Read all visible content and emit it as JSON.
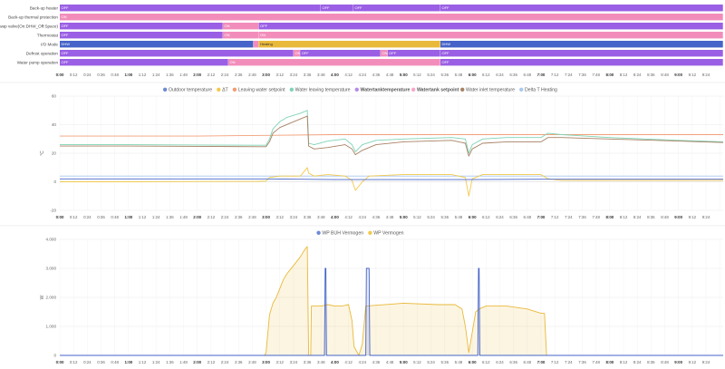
{
  "colors": {
    "off": "#9a5fe4",
    "on": "#f28dbb",
    "heating": "#e9b93a",
    "dhw": "#4563c8"
  },
  "timeline": {
    "rows": [
      {
        "label": "Back-up heater",
        "segments": [
          {
            "start": 0,
            "end": 48,
            "state": "off",
            "text": "OFF"
          },
          {
            "start": 48,
            "end": 54,
            "state": "off",
            "text": "OFF"
          },
          {
            "start": 54,
            "end": 70,
            "state": "off",
            "text": "OFF"
          },
          {
            "start": 70,
            "end": 122,
            "state": "off",
            "text": "OFF"
          }
        ]
      },
      {
        "label": "Back-up thermal protection",
        "segments": [
          {
            "start": 0,
            "end": 122,
            "state": "on",
            "text": "ON"
          }
        ]
      },
      {
        "label": "Swap valve(On:DHW_Off:Space)",
        "segments": [
          {
            "start": 0,
            "end": 30,
            "state": "off",
            "text": "OFF"
          },
          {
            "start": 30,
            "end": 36.6,
            "state": "on",
            "text": "ON"
          },
          {
            "start": 36.6,
            "end": 122,
            "state": "off",
            "text": "OFF"
          }
        ]
      },
      {
        "label": "Thermostat",
        "segments": [
          {
            "start": 0,
            "end": 30,
            "state": "off",
            "text": "OFF"
          },
          {
            "start": 30,
            "end": 36.6,
            "state": "on",
            "text": "ON"
          },
          {
            "start": 36.6,
            "end": 122,
            "state": "on",
            "text": "ON"
          }
        ]
      },
      {
        "label": "I/O Mode",
        "segments": [
          {
            "start": 0,
            "end": 35.6,
            "state": "dhw",
            "text": "DHW"
          },
          {
            "start": 35.6,
            "end": 36.6,
            "state": "on",
            "text": ""
          },
          {
            "start": 36.6,
            "end": 70,
            "state": "heating",
            "text": "Heating"
          },
          {
            "start": 70,
            "end": 122,
            "state": "dhw",
            "text": "DHW"
          }
        ]
      },
      {
        "label": "Defrost operation",
        "segments": [
          {
            "start": 0,
            "end": 43,
            "state": "off",
            "text": "OFF"
          },
          {
            "start": 43,
            "end": 44.2,
            "state": "on",
            "text": "ON"
          },
          {
            "start": 44.2,
            "end": 59,
            "state": "off",
            "text": "OFF"
          },
          {
            "start": 59,
            "end": 60.3,
            "state": "on",
            "text": "ON"
          },
          {
            "start": 60.3,
            "end": 70,
            "state": "off",
            "text": "OFF"
          },
          {
            "start": 70,
            "end": 122,
            "state": "off",
            "text": "OFF"
          }
        ]
      },
      {
        "label": "Water pump operation",
        "segments": [
          {
            "start": 0,
            "end": 31,
            "state": "off",
            "text": "OFF"
          },
          {
            "start": 31,
            "end": 70,
            "state": "on",
            "text": "ON"
          },
          {
            "start": 70,
            "end": 122,
            "state": "off",
            "text": "OFF"
          }
        ]
      }
    ],
    "time_labels": [
      "0:00",
      "0:12",
      "0:24",
      "0:36",
      "0:48",
      "1:00",
      "1:12",
      "1:24",
      "1:36",
      "1:48",
      "2:00",
      "2:12",
      "2:24",
      "2:36",
      "2:48",
      "3:00",
      "3:12",
      "3:24",
      "3:36",
      "3:48",
      "4:00",
      "4:12",
      "4:24",
      "4:36",
      "4:48",
      "5:00",
      "5:12",
      "5:24",
      "5:36",
      "5:48",
      "6:00",
      "6:12",
      "6:24",
      "6:36",
      "6:48",
      "7:00",
      "7:12",
      "7:24",
      "7:36",
      "7:48",
      "8:00",
      "8:12",
      "8:24",
      "8:36",
      "8:48",
      "9:00",
      "9:12",
      "9:24"
    ]
  },
  "chart_data": [
    {
      "type": "line",
      "x_unit": "hours",
      "xlim": [
        0,
        9.65
      ],
      "ylabel": "°C",
      "ylim": [
        -20,
        60
      ],
      "yticks": [
        "60",
        "40",
        "20",
        "0",
        "-20"
      ],
      "legend": [
        {
          "name": "Outdoor temperature",
          "color": "#6f89d6",
          "style": "normal"
        },
        {
          "name": "ΔT",
          "color": "#f2c94c",
          "style": "normal"
        },
        {
          "name": "Leaving water setpoint",
          "color": "#f29b72",
          "style": "normal"
        },
        {
          "name": "Water leaving temperature",
          "color": "#7fd3b5",
          "style": "normal"
        },
        {
          "name": "Watertanktemperature",
          "color": "#b68ae8",
          "style": "bold"
        },
        {
          "name": "Watertank setpoint",
          "color": "#f6a6c9",
          "style": "bold"
        },
        {
          "name": "Water inlet temperature",
          "color": "#a88163",
          "style": "normal"
        },
        {
          "name": "Delta T Heating",
          "color": "#a9c8f0",
          "style": "normal"
        }
      ],
      "series": [
        {
          "name": "Leaving water setpoint",
          "color": "#f2a07a",
          "points": [
            [
              0,
              32
            ],
            [
              1,
              32
            ],
            [
              2,
              32
            ],
            [
              3,
              32.5
            ],
            [
              4,
              33
            ],
            [
              5,
              33
            ],
            [
              6,
              33
            ],
            [
              7,
              33
            ],
            [
              8,
              33
            ],
            [
              9,
              33
            ],
            [
              9.65,
              33
            ]
          ]
        },
        {
          "name": "Delta T Heating",
          "color": "#a9c8f0",
          "points": [
            [
              0,
              4
            ],
            [
              3,
              4
            ],
            [
              3.05,
              4
            ],
            [
              4,
              4
            ],
            [
              6,
              4
            ],
            [
              7,
              4
            ],
            [
              9.65,
              4
            ]
          ]
        },
        {
          "name": "Water leaving temperature",
          "color": "#7fd3b5",
          "points": [
            [
              0,
              26
            ],
            [
              1,
              26
            ],
            [
              2,
              25.8
            ],
            [
              2.9,
              25.6
            ],
            [
              3.0,
              25.6
            ],
            [
              3.05,
              30
            ],
            [
              3.1,
              37
            ],
            [
              3.2,
              42
            ],
            [
              3.3,
              45
            ],
            [
              3.5,
              48
            ],
            [
              3.6,
              50
            ],
            [
              3.62,
              27
            ],
            [
              3.7,
              26
            ],
            [
              3.9,
              28.5
            ],
            [
              4.15,
              30
            ],
            [
              4.25,
              26
            ],
            [
              4.3,
              21
            ],
            [
              4.4,
              26
            ],
            [
              4.6,
              29
            ],
            [
              5,
              30
            ],
            [
              5.7,
              31
            ],
            [
              5.9,
              30
            ],
            [
              5.95,
              20
            ],
            [
              6.0,
              26
            ],
            [
              6.15,
              30
            ],
            [
              6.5,
              31
            ],
            [
              7.0,
              31
            ],
            [
              7.1,
              34
            ],
            [
              7.3,
              33
            ],
            [
              8,
              31
            ],
            [
              9,
              29
            ],
            [
              9.65,
              28
            ]
          ]
        },
        {
          "name": "Water inlet temperature",
          "color": "#a88163",
          "points": [
            [
              0,
              25
            ],
            [
              1,
              25
            ],
            [
              2,
              24.8
            ],
            [
              2.9,
              24.6
            ],
            [
              3.0,
              24.6
            ],
            [
              3.05,
              28
            ],
            [
              3.1,
              34
            ],
            [
              3.2,
              38
            ],
            [
              3.4,
              42
            ],
            [
              3.6,
              46
            ],
            [
              3.62,
              25
            ],
            [
              3.7,
              23
            ],
            [
              3.9,
              24
            ],
            [
              4.15,
              26
            ],
            [
              4.25,
              23
            ],
            [
              4.3,
              19
            ],
            [
              4.4,
              22
            ],
            [
              4.6,
              26
            ],
            [
              5,
              28
            ],
            [
              5.7,
              29
            ],
            [
              5.9,
              27
            ],
            [
              5.95,
              18
            ],
            [
              6.0,
              23
            ],
            [
              6.15,
              27
            ],
            [
              6.5,
              28
            ],
            [
              7.0,
              28
            ],
            [
              7.1,
              31
            ],
            [
              7.3,
              31
            ],
            [
              8,
              30
            ],
            [
              9,
              28.5
            ],
            [
              9.65,
              27.5
            ]
          ]
        },
        {
          "name": "ΔT",
          "color": "#f2c94c",
          "points": [
            [
              0,
              0
            ],
            [
              1,
              0
            ],
            [
              2,
              0.2
            ],
            [
              2.9,
              0.3
            ],
            [
              3.0,
              0.5
            ],
            [
              3.05,
              3
            ],
            [
              3.2,
              4
            ],
            [
              3.5,
              4
            ],
            [
              3.6,
              10
            ],
            [
              3.62,
              6
            ],
            [
              3.7,
              4
            ],
            [
              3.9,
              5
            ],
            [
              4.15,
              4
            ],
            [
              4.25,
              1
            ],
            [
              4.3,
              -6
            ],
            [
              4.4,
              0
            ],
            [
              4.5,
              4
            ],
            [
              5,
              5
            ],
            [
              5.7,
              5
            ],
            [
              5.9,
              3
            ],
            [
              5.95,
              -10
            ],
            [
              6.0,
              2
            ],
            [
              6.15,
              5
            ],
            [
              6.5,
              5
            ],
            [
              7.0,
              5
            ],
            [
              7.1,
              2
            ],
            [
              7.3,
              1
            ],
            [
              8,
              1
            ],
            [
              9,
              1
            ],
            [
              9.65,
              1
            ]
          ]
        },
        {
          "name": "Outdoor temperature",
          "color": "#4563c8",
          "points": [
            [
              0,
              2
            ],
            [
              1,
              2
            ],
            [
              2,
              2
            ],
            [
              3,
              2
            ],
            [
              3.5,
              1.8
            ],
            [
              4,
              1.5
            ],
            [
              5,
              1.5
            ],
            [
              5.5,
              1.5
            ],
            [
              6,
              1.5
            ],
            [
              7,
              1.8
            ],
            [
              8,
              1.8
            ],
            [
              9,
              1.8
            ],
            [
              9.65,
              1.8
            ]
          ]
        }
      ]
    },
    {
      "type": "line",
      "x_unit": "hours",
      "xlim": [
        0,
        9.65
      ],
      "ylabel": "W",
      "ylim": [
        0,
        4000
      ],
      "yticks": [
        "4.000",
        "3.000",
        "2.000",
        "1.000",
        "0"
      ],
      "legend": [
        {
          "name": "WP BUH Vermogen",
          "color": "#6f89d6",
          "style": "normal"
        },
        {
          "name": "WP Vermogen",
          "color": "#f2c94c",
          "style": "normal"
        }
      ],
      "series": [
        {
          "name": "WP Vermogen",
          "color": "#e9b93a",
          "points": [
            [
              0,
              0
            ],
            [
              2.98,
              0
            ],
            [
              3.0,
              100
            ],
            [
              3.05,
              1400
            ],
            [
              3.1,
              1800
            ],
            [
              3.15,
              2000
            ],
            [
              3.2,
              2300
            ],
            [
              3.25,
              2600
            ],
            [
              3.3,
              2800
            ],
            [
              3.4,
              3100
            ],
            [
              3.5,
              3400
            ],
            [
              3.55,
              3600
            ],
            [
              3.58,
              3700
            ],
            [
              3.6,
              3750
            ],
            [
              3.62,
              0
            ],
            [
              3.65,
              0
            ],
            [
              3.66,
              1700
            ],
            [
              3.8,
              1700
            ],
            [
              3.9,
              1750
            ],
            [
              4.0,
              1700
            ],
            [
              4.1,
              1700
            ],
            [
              4.2,
              1750
            ],
            [
              4.25,
              1200
            ],
            [
              4.28,
              300
            ],
            [
              4.35,
              0
            ],
            [
              4.4,
              400
            ],
            [
              4.45,
              1700
            ],
            [
              5.0,
              1800
            ],
            [
              5.5,
              1750
            ],
            [
              5.75,
              1750
            ],
            [
              5.85,
              1600
            ],
            [
              5.9,
              1000
            ],
            [
              5.95,
              100
            ],
            [
              6.0,
              800
            ],
            [
              6.05,
              1500
            ],
            [
              6.1,
              1600
            ],
            [
              6.2,
              1700
            ],
            [
              6.5,
              1700
            ],
            [
              6.8,
              1600
            ],
            [
              7.0,
              1450
            ],
            [
              7.05,
              1450
            ],
            [
              7.08,
              0
            ],
            [
              9.65,
              0
            ]
          ]
        },
        {
          "name": "WP BUH Vermogen",
          "color": "#4563c8",
          "points": [
            [
              0,
              0
            ],
            [
              3.85,
              0
            ],
            [
              3.86,
              3000
            ],
            [
              3.87,
              3000
            ],
            [
              3.88,
              0
            ],
            [
              4.45,
              0
            ],
            [
              4.46,
              3000
            ],
            [
              4.5,
              3000
            ],
            [
              4.51,
              0
            ],
            [
              6.08,
              0
            ],
            [
              6.09,
              3000
            ],
            [
              6.1,
              3000
            ],
            [
              6.11,
              0
            ],
            [
              9.65,
              0
            ]
          ]
        }
      ]
    }
  ]
}
